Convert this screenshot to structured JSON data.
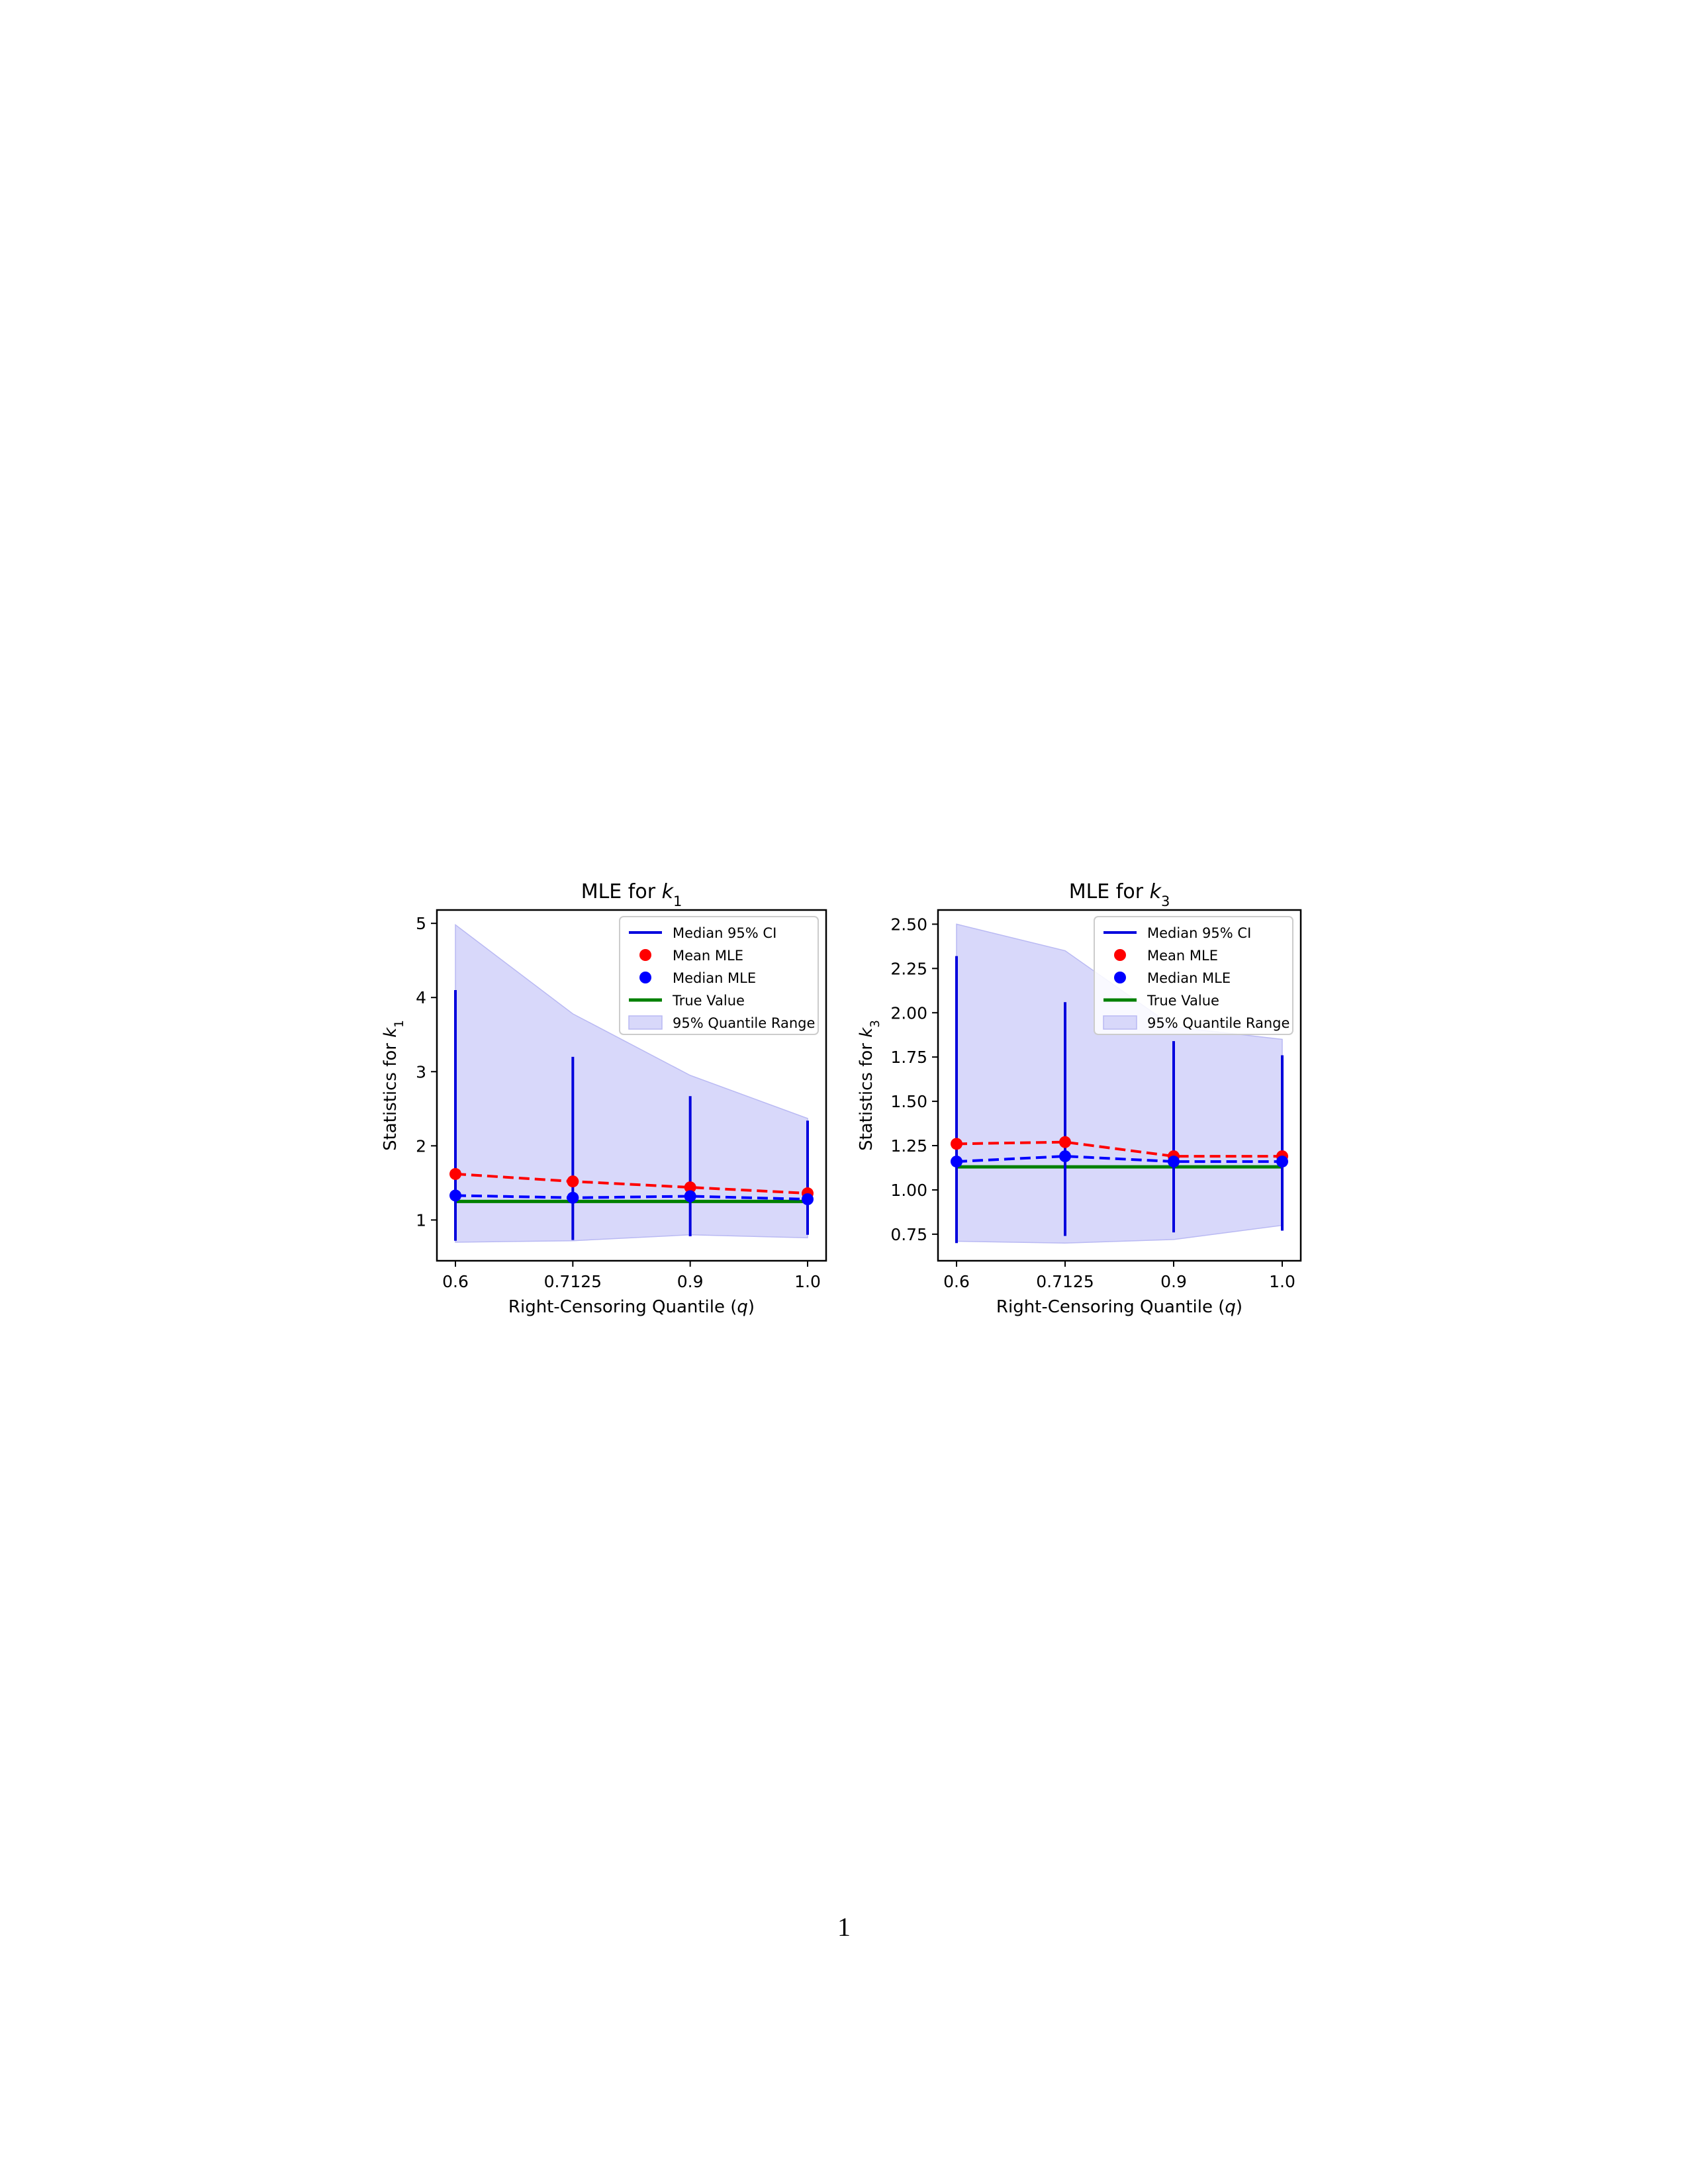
{
  "colors": {
    "ci": "#0000dd",
    "mean": "#ff0000",
    "median": "#0000ff",
    "true_value": "#008000",
    "band_fill": "#d8d8fa",
    "band_edge": "#b9b9f3"
  },
  "page_number": "1",
  "chart_data": [
    {
      "type": "line",
      "title": "MLE for k",
      "title_sub": "1",
      "xlabel": "Right-Censoring Quantile (q)",
      "ylabel": "Statistics for k",
      "ylabel_sub": "1",
      "x": [
        0.6,
        0.7125,
        0.9,
        1.0
      ],
      "x_tick_labels": [
        "0.6",
        "0.7125",
        "0.9",
        "1.0"
      ],
      "ylim": [
        0.45,
        5.18
      ],
      "y_ticks": [
        1,
        2,
        3,
        4,
        5
      ],
      "y_tick_labels": [
        "1",
        "2",
        "3",
        "4",
        "5"
      ],
      "legend_position": "upper right",
      "legend": [
        "Median 95% CI",
        "Mean MLE",
        "Median MLE",
        "True Value",
        "95% Quantile Range"
      ],
      "median_ci": {
        "lower": [
          0.72,
          0.73,
          0.78,
          0.8
        ],
        "upper": [
          4.1,
          3.2,
          2.67,
          2.34
        ]
      },
      "mean_mle": [
        1.62,
        1.52,
        1.44,
        1.36
      ],
      "median_mle": [
        1.33,
        1.3,
        1.32,
        1.28
      ],
      "true_value": 1.25,
      "quantile_range": {
        "lower": [
          0.7,
          0.72,
          0.8,
          0.76
        ],
        "upper": [
          4.98,
          3.78,
          2.95,
          2.37
        ]
      }
    },
    {
      "type": "line",
      "title": "MLE for k",
      "title_sub": "3",
      "xlabel": "Right-Censoring Quantile (q)",
      "ylabel": "Statistics for k",
      "ylabel_sub": "3",
      "x": [
        0.6,
        0.7125,
        0.9,
        1.0
      ],
      "x_tick_labels": [
        "0.6",
        "0.7125",
        "0.9",
        "1.0"
      ],
      "ylim": [
        0.6,
        2.58
      ],
      "y_ticks": [
        0.75,
        1.0,
        1.25,
        1.5,
        1.75,
        2.0,
        2.25,
        2.5
      ],
      "y_tick_labels": [
        "0.75",
        "1.00",
        "1.25",
        "1.50",
        "1.75",
        "2.00",
        "2.25",
        "2.50"
      ],
      "legend_position": "upper right",
      "legend": [
        "Median 95% CI",
        "Mean MLE",
        "Median MLE",
        "True Value",
        "95% Quantile Range"
      ],
      "median_ci": {
        "lower": [
          0.7,
          0.74,
          0.76,
          0.77
        ],
        "upper": [
          2.32,
          2.06,
          1.84,
          1.76
        ]
      },
      "mean_mle": [
        1.26,
        1.27,
        1.19,
        1.19
      ],
      "median_mle": [
        1.16,
        1.19,
        1.16,
        1.16
      ],
      "true_value": 1.13,
      "quantile_range": {
        "lower": [
          0.71,
          0.7,
          0.72,
          0.8
        ],
        "upper": [
          2.5,
          2.35,
          1.92,
          1.85
        ]
      }
    }
  ]
}
